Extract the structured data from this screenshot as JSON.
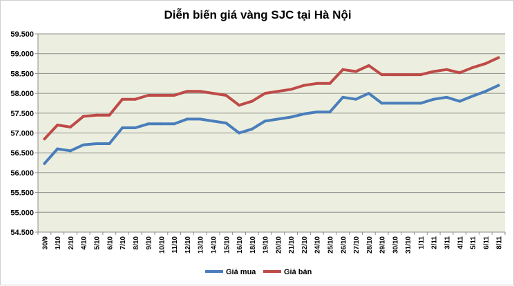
{
  "chart_data": {
    "type": "line",
    "title": "Diễn biến giá vàng SJC tại Hà Nội",
    "xlabel": "",
    "ylabel": "",
    "ylim": [
      54500,
      59500
    ],
    "ytick_step": 500,
    "ytick_labels": [
      "54.500",
      "55.000",
      "55.500",
      "56.000",
      "56.500",
      "57.000",
      "57.500",
      "58.000",
      "58.500",
      "59.000",
      "59.500"
    ],
    "grid": true,
    "legend_position": "bottom-center",
    "categories": [
      "30/9",
      "1/10",
      "2/10",
      "4/10",
      "5/10",
      "6/10",
      "7/10",
      "8/10",
      "9/10",
      "10/10",
      "11/10",
      "12/10",
      "13/10",
      "14/10",
      "15/10",
      "16/10",
      "18/10",
      "19/10",
      "20/10",
      "21/10",
      "22/10",
      "24/10",
      "25/10",
      "26/10",
      "27/10",
      "28/10",
      "29/10",
      "30/10",
      "31/10",
      "1/11",
      "2/11",
      "3/11",
      "4/11",
      "5/11",
      "6/11",
      "8/11"
    ],
    "series": [
      {
        "name": "Giá mua",
        "color": "#4a7ebb",
        "values": [
          56230,
          56600,
          56550,
          56700,
          56730,
          56730,
          57130,
          57130,
          57230,
          57230,
          57230,
          57350,
          57350,
          57300,
          57250,
          57000,
          57100,
          57300,
          57350,
          57400,
          57480,
          57530,
          57530,
          57900,
          57850,
          58000,
          57750,
          57750,
          57750,
          57750,
          57850,
          57900,
          57800,
          57930,
          58050,
          58200
        ]
      },
      {
        "name": "Giá bán",
        "color": "#be4b48",
        "values": [
          56850,
          57200,
          57150,
          57420,
          57450,
          57450,
          57850,
          57850,
          57950,
          57950,
          57950,
          58050,
          58050,
          58000,
          57950,
          57700,
          57800,
          58000,
          58050,
          58100,
          58200,
          58250,
          58250,
          58600,
          58550,
          58700,
          58470,
          58470,
          58470,
          58470,
          58550,
          58600,
          58520,
          58650,
          58750,
          58900
        ]
      }
    ]
  }
}
